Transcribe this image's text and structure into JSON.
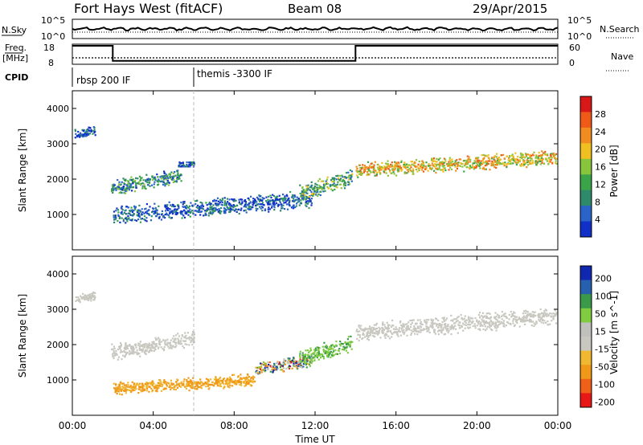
{
  "header": {
    "station": "Fort Hays West (fitACF)",
    "beam": "Beam 08",
    "date": "29/Apr/2015"
  },
  "noise_panel": {
    "left_label": "N.Sky",
    "right_label": "N.Search",
    "left_ticks": [
      "10^5",
      "10^0"
    ],
    "right_ticks": [
      "10^5",
      "10^0"
    ]
  },
  "freq_panel": {
    "left_label_1": "Freq.",
    "left_label_2": "[MHz]",
    "right_label": "Nave",
    "left_ticks": [
      "18",
      "8"
    ],
    "right_ticks": [
      "60",
      "0"
    ]
  },
  "cpid": {
    "label": "CPID",
    "segments": [
      {
        "label": "rbsp 200 IF",
        "start_hour": 0
      },
      {
        "label": "themis -3300 IF",
        "start_hour": 6
      }
    ]
  },
  "x_axis": {
    "label": "Time UT",
    "ticks": [
      "00:00",
      "04:00",
      "08:00",
      "12:00",
      "16:00",
      "20:00",
      "00:00"
    ]
  },
  "colors": {
    "power_scale": [
      "#1030c8",
      "#2a64c8",
      "#2e8a6a",
      "#3aa448",
      "#88c43c",
      "#f0c020",
      "#f08c20",
      "#f05a18",
      "#d81818"
    ],
    "velocity_scale": [
      "#e81818",
      "#f06018",
      "#f09818",
      "#f0b830",
      "#c8c8c0",
      "#c0c0bc",
      "#80cc40",
      "#3a9a4a",
      "#2860b0",
      "#1028b0"
    ],
    "ground_scatter": "#c8c8c0"
  },
  "chart_data": [
    {
      "type": "line",
      "title": "N.Sky / N.Search noise",
      "x_range_hours": [
        0,
        24
      ],
      "series": [
        {
          "name": "N.Sky",
          "description": "roughly constant near upper level"
        }
      ]
    },
    {
      "type": "line",
      "title": "Freq. / Nave",
      "x_range_hours": [
        0,
        24
      ],
      "series": [
        {
          "name": "Freq.",
          "x": [
            0,
            2,
            2,
            14,
            14,
            24
          ],
          "y": [
            18,
            18,
            10.5,
            10.5,
            18,
            18
          ]
        },
        {
          "name": "Nave",
          "x": [
            0,
            24
          ],
          "y": [
            18,
            18
          ]
        }
      ]
    },
    {
      "type": "heatmap",
      "ylabel": "Slant Range [km]",
      "xlabel": "Time UT",
      "yticks": [
        "1000",
        "2000",
        "3000",
        "4000"
      ],
      "ylim": [
        0,
        4500
      ],
      "xlim_hours": [
        0,
        24
      ],
      "colorbar": {
        "label": "Power [dB]",
        "ticks": [
          "4",
          "8",
          "12",
          "16",
          "20",
          "24",
          "28"
        ],
        "range": [
          0,
          32
        ]
      },
      "features": [
        {
          "x_hours": [
            0.1,
            1.1
          ],
          "range_km": [
            3200,
            3500
          ],
          "level_db": 5
        },
        {
          "x_hours": [
            1.9,
            5.4
          ],
          "range_km": [
            1500,
            2400
          ],
          "level_db": 7
        },
        {
          "x_hours": [
            5.2,
            6.0
          ],
          "range_km": [
            2380,
            2500
          ],
          "level_db": 5
        },
        {
          "x_hours": [
            2.0,
            11.8
          ],
          "range_km": [
            650,
            1800
          ],
          "level_db": 5
        },
        {
          "x_hours": [
            11.2,
            13.8
          ],
          "range_km": [
            1300,
            2400
          ],
          "level_db": 12
        },
        {
          "x_hours": [
            14.0,
            23.9
          ],
          "range_km": [
            2000,
            2900
          ],
          "level_db": 18
        }
      ]
    },
    {
      "type": "heatmap",
      "ylabel": "Slant Range [km]",
      "xlabel": "Time UT",
      "yticks": [
        "1000",
        "2000",
        "3000",
        "4000"
      ],
      "ylim": [
        0,
        4500
      ],
      "xlim_hours": [
        0,
        24
      ],
      "colorbar": {
        "label": "Velocity [m s^-1]",
        "ticks": [
          "200",
          "100",
          "50",
          "15",
          "-15",
          "-50",
          "-100",
          "-200"
        ]
      },
      "features": [
        {
          "x_hours": [
            0.1,
            1.1
          ],
          "range_km": [
            3200,
            3500
          ],
          "category": "ground"
        },
        {
          "x_hours": [
            1.9,
            6.0
          ],
          "range_km": [
            1500,
            2500
          ],
          "category": "ground"
        },
        {
          "x_hours": [
            2.0,
            9.0
          ],
          "range_km": [
            600,
            1200
          ],
          "category": "negative",
          "velocity_ms": -50
        },
        {
          "x_hours": [
            9.0,
            11.8
          ],
          "range_km": [
            1100,
            1800
          ],
          "category": "mixed"
        },
        {
          "x_hours": [
            11.2,
            13.8
          ],
          "range_km": [
            1300,
            2400
          ],
          "category": "positive",
          "velocity_ms": 50
        },
        {
          "x_hours": [
            14.0,
            23.9
          ],
          "range_km": [
            2000,
            3200
          ],
          "category": "ground"
        }
      ]
    }
  ]
}
